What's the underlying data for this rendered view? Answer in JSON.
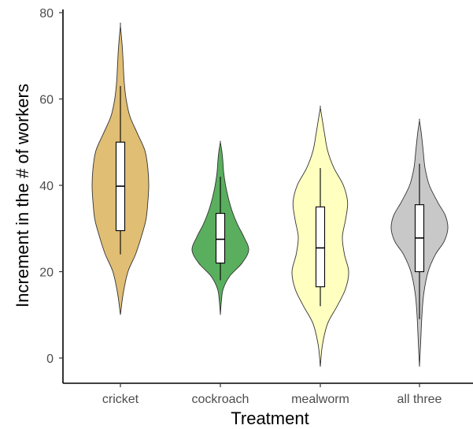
{
  "chart_data": {
    "type": "violin",
    "title": "",
    "xlabel": "Treatment",
    "ylabel": "Increment in the # of workers",
    "ylim": [
      -6,
      80
    ],
    "yticks": [
      0,
      20,
      40,
      60,
      80
    ],
    "grid": false,
    "legend": "none",
    "categories": [
      "cricket",
      "cockroach",
      "mealworm",
      "all three"
    ],
    "series": [
      {
        "category": "cricket",
        "color": "#E0BE74",
        "box": {
          "q1": 29.5,
          "median": 39.8,
          "q3": 50.0,
          "whisker_low": 24,
          "whisker_high": 63
        },
        "density": [
          [
            10,
            0
          ],
          [
            15,
            3
          ],
          [
            20,
            8
          ],
          [
            24,
            16
          ],
          [
            28,
            22
          ],
          [
            32,
            27
          ],
          [
            36,
            29
          ],
          [
            40,
            30
          ],
          [
            44,
            29
          ],
          [
            48,
            26
          ],
          [
            52,
            18
          ],
          [
            56,
            10
          ],
          [
            60,
            6
          ],
          [
            64,
            4
          ],
          [
            68,
            3
          ],
          [
            72,
            2
          ],
          [
            77,
            0
          ]
        ]
      },
      {
        "category": "cockroach",
        "color": "#5AAF5F",
        "box": {
          "q1": 22.0,
          "median": 27.5,
          "q3": 33.5,
          "whisker_low": 18,
          "whisker_high": 42
        },
        "density": [
          [
            10,
            0
          ],
          [
            13,
            2
          ],
          [
            16,
            6
          ],
          [
            19,
            20
          ],
          [
            22,
            46
          ],
          [
            25,
            60
          ],
          [
            28,
            50
          ],
          [
            31,
            36
          ],
          [
            34,
            25
          ],
          [
            37,
            17
          ],
          [
            40,
            11
          ],
          [
            43,
            7
          ],
          [
            46,
            5
          ],
          [
            48,
            3
          ],
          [
            50,
            0
          ]
        ]
      },
      {
        "category": "mealworm",
        "color": "#FFFFC0",
        "box": {
          "q1": 16.5,
          "median": 25.5,
          "q3": 35.0,
          "whisker_low": 12,
          "whisker_high": 44
        },
        "density": [
          [
            -2,
            0
          ],
          [
            3,
            2
          ],
          [
            8,
            7
          ],
          [
            12,
            16
          ],
          [
            16,
            24
          ],
          [
            20,
            27
          ],
          [
            24,
            23
          ],
          [
            28,
            21
          ],
          [
            32,
            24
          ],
          [
            36,
            26
          ],
          [
            40,
            22
          ],
          [
            44,
            13
          ],
          [
            48,
            7
          ],
          [
            52,
            4
          ],
          [
            55,
            2
          ],
          [
            58,
            0
          ]
        ]
      },
      {
        "category": "all three",
        "color": "#C8C8C8",
        "box": {
          "q1": 20.0,
          "median": 27.8,
          "q3": 35.5,
          "whisker_low": 9,
          "whisker_high": 45
        },
        "density": [
          [
            -2,
            0
          ],
          [
            4,
            2
          ],
          [
            10,
            4
          ],
          [
            15,
            7
          ],
          [
            20,
            14
          ],
          [
            24,
            26
          ],
          [
            27,
            40
          ],
          [
            30,
            46
          ],
          [
            33,
            42
          ],
          [
            36,
            30
          ],
          [
            40,
            16
          ],
          [
            44,
            9
          ],
          [
            48,
            6
          ],
          [
            52,
            3
          ],
          [
            55,
            0
          ]
        ]
      }
    ]
  }
}
